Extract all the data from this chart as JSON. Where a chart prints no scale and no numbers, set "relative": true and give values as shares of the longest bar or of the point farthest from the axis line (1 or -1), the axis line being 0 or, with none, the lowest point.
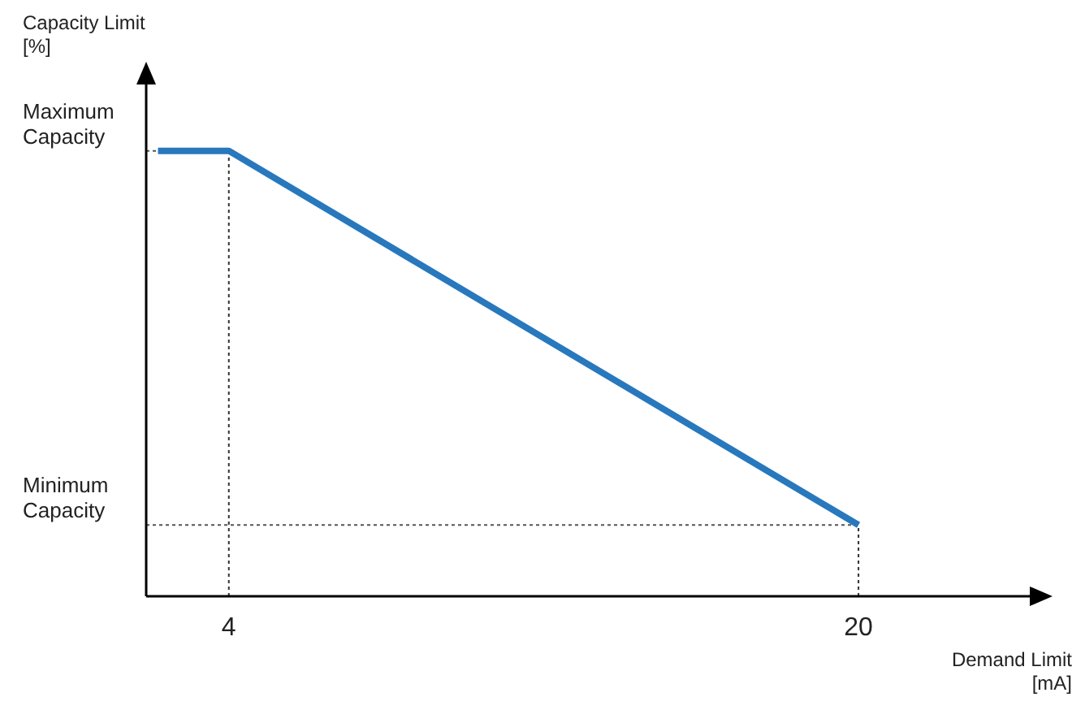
{
  "chart_data": {
    "type": "line",
    "relative": true,
    "ylabel": "Capacity Limit\n[%]",
    "xlabel": "Demand Limit\n[mA]",
    "x": [
      2.2,
      4,
      20
    ],
    "series": [
      {
        "color": "#2878bd",
        "values": [
          1,
          1,
          0.16
        ]
      }
    ],
    "xlim": [
      1.9,
      24.6
    ],
    "xticks": [
      4,
      20
    ],
    "ref_lines": [
      {
        "axis": "y",
        "value": 1,
        "label": "Maximum\nCapacity",
        "line_style": "dotted"
      },
      {
        "axis": "y",
        "value": 0.16,
        "label": "Minimum\nCapacity",
        "line_style": "dotted"
      },
      {
        "axis": "x",
        "value": 4,
        "line_style": "dotted"
      },
      {
        "axis": "x",
        "value": 20,
        "line_style": "dotted"
      }
    ],
    "line_style": "solid"
  }
}
